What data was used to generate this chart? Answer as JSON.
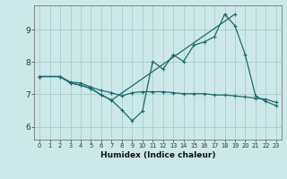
{
  "xlabel": "Humidex (Indice chaleur)",
  "bg_color": "#cde8e8",
  "grid_color": "#a8cccc",
  "line_color": "#1a6b6b",
  "xlim": [
    -0.5,
    23.5
  ],
  "ylim": [
    5.6,
    9.75
  ],
  "yticks": [
    6,
    7,
    8,
    9
  ],
  "xticks": [
    0,
    1,
    2,
    3,
    4,
    5,
    6,
    7,
    8,
    9,
    10,
    11,
    12,
    13,
    14,
    15,
    16,
    17,
    18,
    19,
    20,
    21,
    22,
    23
  ],
  "series1_x": [
    0,
    2,
    3,
    4,
    5,
    6,
    7,
    19
  ],
  "series1_y": [
    7.55,
    7.55,
    7.35,
    7.28,
    7.18,
    6.98,
    6.82,
    9.48
  ],
  "series2_x": [
    0,
    2,
    3,
    4,
    5,
    6,
    7,
    8,
    9,
    10,
    11,
    12,
    13,
    14,
    15,
    16,
    17,
    18,
    19,
    20,
    21,
    22,
    23
  ],
  "series2_y": [
    7.55,
    7.55,
    7.35,
    7.28,
    7.18,
    6.98,
    6.82,
    6.52,
    6.18,
    6.48,
    8.02,
    7.78,
    8.22,
    8.02,
    8.52,
    8.62,
    8.78,
    9.48,
    9.12,
    8.22,
    6.95,
    6.78,
    6.65
  ],
  "series3_x": [
    0,
    2,
    3,
    4,
    5,
    6,
    7,
    8,
    9,
    10,
    11,
    12,
    13,
    14,
    15,
    16,
    17,
    18,
    19,
    20,
    21,
    22,
    23
  ],
  "series3_y": [
    7.55,
    7.55,
    7.38,
    7.35,
    7.22,
    7.12,
    7.05,
    6.95,
    7.05,
    7.08,
    7.08,
    7.08,
    7.05,
    7.02,
    7.02,
    7.02,
    6.98,
    6.98,
    6.95,
    6.92,
    6.88,
    6.85,
    6.75
  ],
  "marker_size": 2.5,
  "linewidth": 0.9
}
